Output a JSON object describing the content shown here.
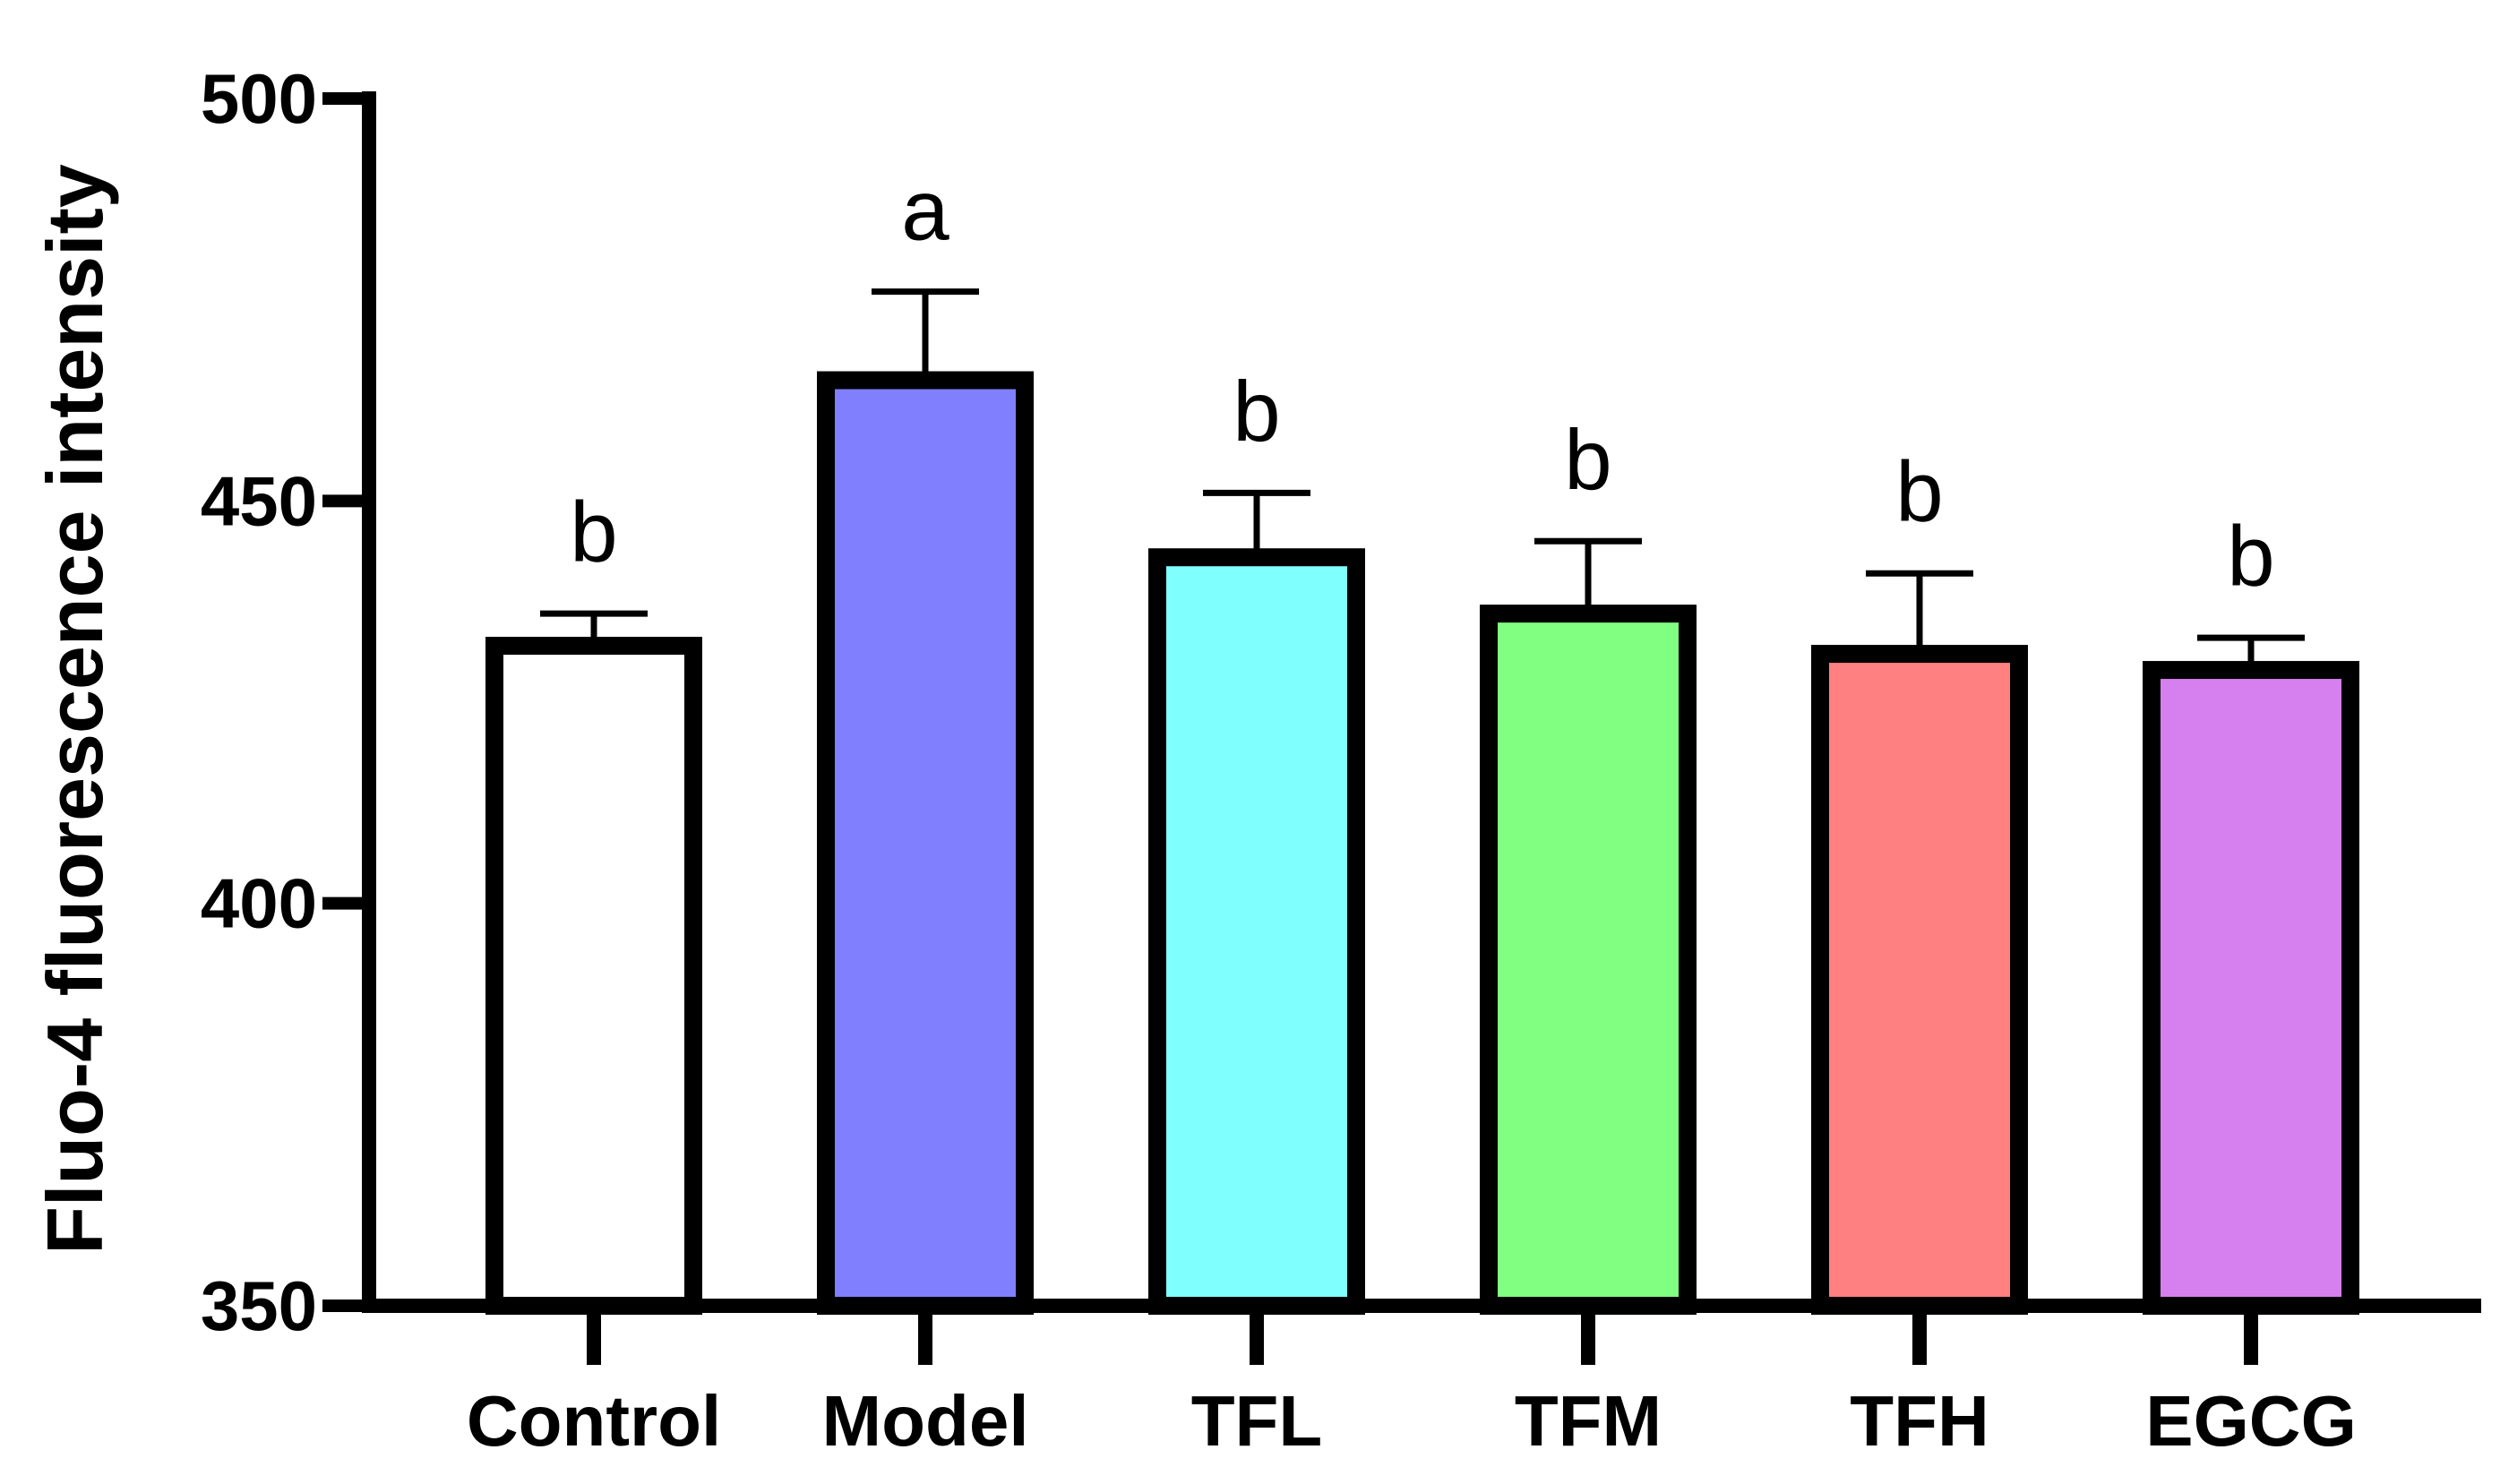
{
  "chart_data": {
    "type": "bar",
    "title": "",
    "xlabel": "",
    "ylabel": "Fluo-4 fluorescence intensity",
    "ylim": [
      350,
      500
    ],
    "yticks": [
      350,
      400,
      450,
      500
    ],
    "yticks_text": [
      "350",
      "400",
      "450",
      "500"
    ],
    "categories": [
      "Control",
      "Model",
      "TFL",
      "TFM",
      "TFH",
      "EGCG"
    ],
    "values": [
      432,
      465,
      443,
      436,
      431,
      429
    ],
    "errors": [
      4,
      11,
      8,
      9,
      10,
      4
    ],
    "significance": [
      "b",
      "a",
      "b",
      "b",
      "b",
      "b"
    ],
    "colors": [
      "#ffffff",
      "#8080ff",
      "#80ffff",
      "#80ff80",
      "#ff8080",
      "#d580ee"
    ],
    "grid": false,
    "legend": "none"
  }
}
